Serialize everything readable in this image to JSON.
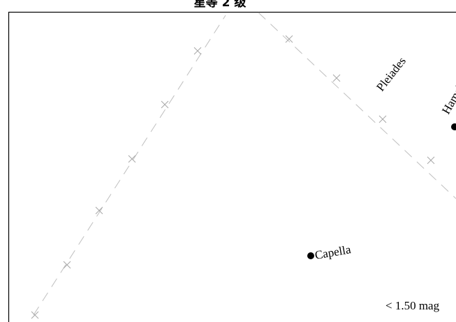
{
  "header": {
    "title": "星等 2 级"
  },
  "stars": [
    {
      "name": "Capella"
    },
    {
      "name": "Hamal"
    }
  ],
  "clusters": [
    {
      "name": "Pleiades"
    }
  ],
  "legend": {
    "magnitude_limit": "< 1.50 mag"
  },
  "colors": {
    "star": "#000000",
    "line": "#bfbfbf",
    "frame": "#000000",
    "background": "#ffffff"
  }
}
